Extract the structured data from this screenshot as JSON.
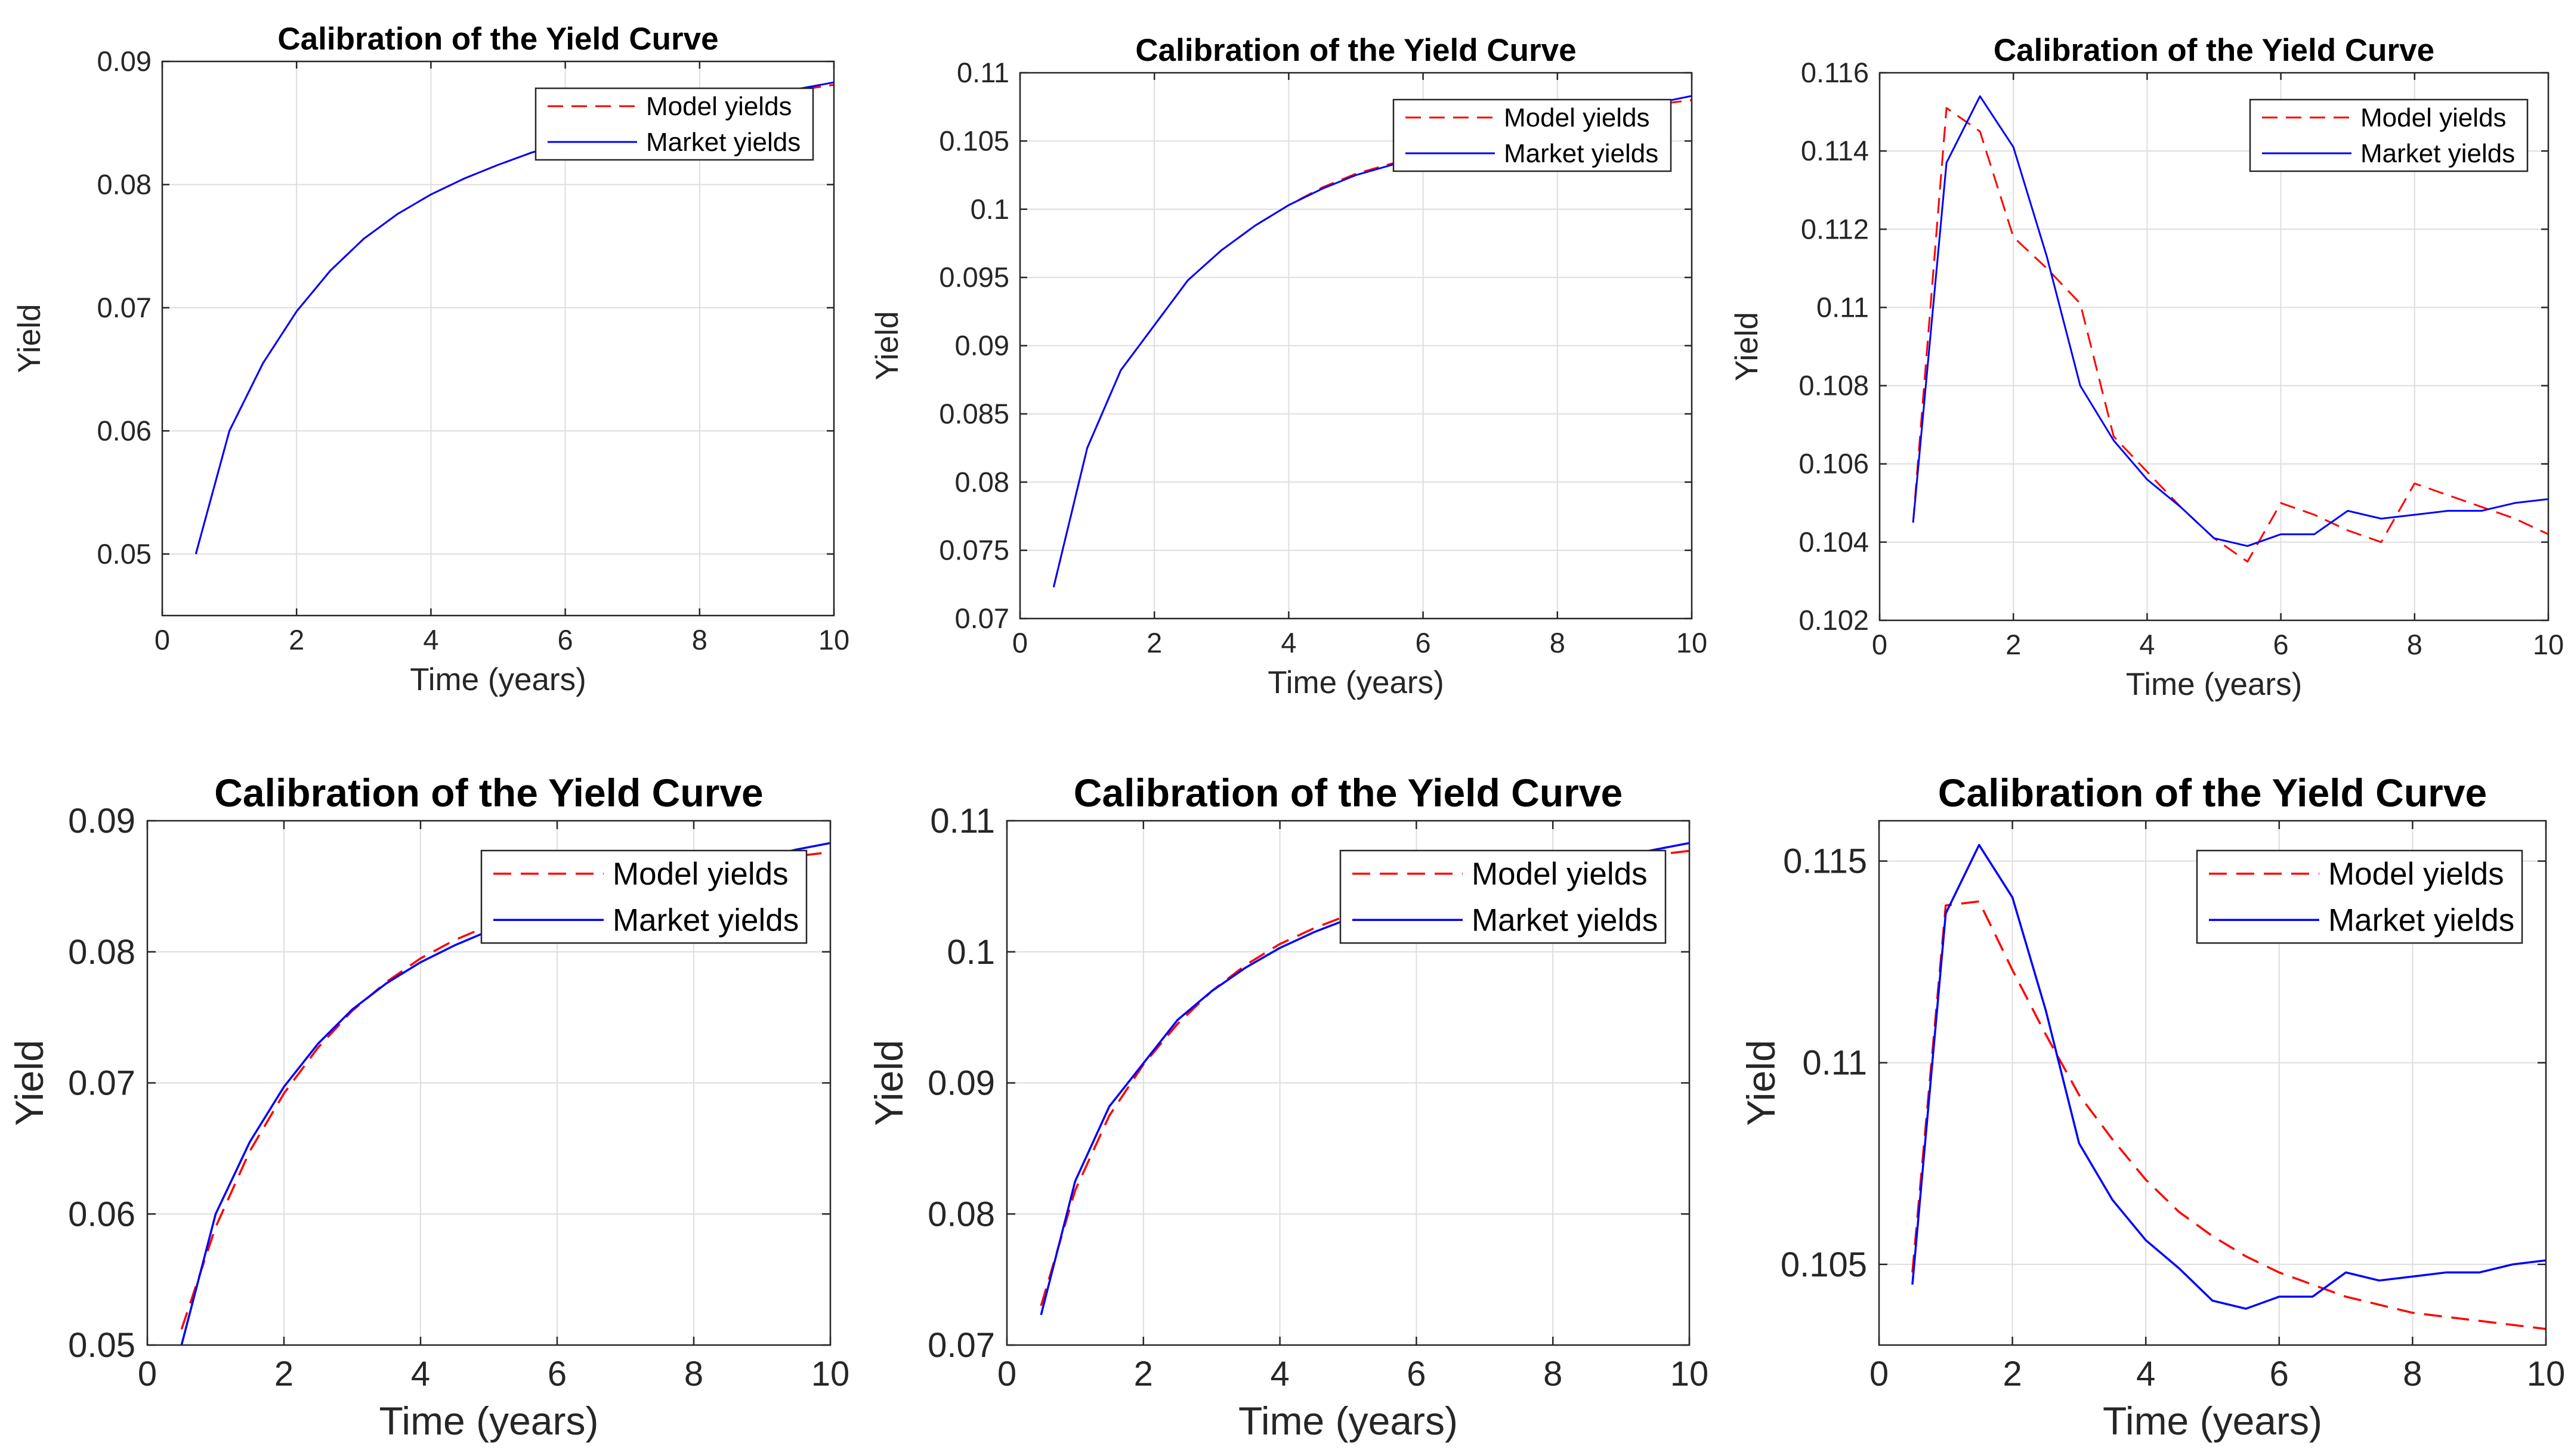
{
  "chart_data": [
    {
      "type": "line",
      "title": "Calibration of the Yield Curve",
      "xlabel": "Time (years)",
      "ylabel": "Yield",
      "xlim": [
        0,
        10
      ],
      "ylim": [
        0.045,
        0.09
      ],
      "xticks": [
        0,
        2,
        4,
        6,
        8,
        10
      ],
      "xtick_labels": [
        "0",
        "2",
        "4",
        "6",
        "8",
        "10"
      ],
      "yticks": [
        0.05,
        0.06,
        0.07,
        0.08,
        0.09
      ],
      "ytick_labels": [
        "0.05",
        "0.06",
        "0.07",
        "0.08",
        "0.09"
      ],
      "grid": true,
      "legend": "top-right",
      "x": [
        0.5,
        1,
        1.5,
        2,
        2.5,
        3,
        3.5,
        4,
        4.5,
        5,
        5.5,
        6,
        6.5,
        7,
        7.5,
        8,
        8.5,
        9,
        9.5,
        10
      ],
      "series": [
        {
          "name": "Model yields",
          "color": "#ff0000",
          "style": "dashed",
          "values": [
            0.05,
            0.06,
            0.0655,
            0.0697,
            0.073,
            0.0756,
            0.0776,
            0.0792,
            0.0805,
            0.0816,
            0.0826,
            0.0834,
            0.0841,
            0.0848,
            0.0854,
            0.086,
            0.0866,
            0.0872,
            0.0877,
            0.0881
          ]
        },
        {
          "name": "Market yields",
          "color": "#0000ff",
          "style": "solid",
          "values": [
            0.05,
            0.06,
            0.0655,
            0.0697,
            0.073,
            0.0756,
            0.0776,
            0.0792,
            0.0805,
            0.0816,
            0.0826,
            0.0834,
            0.0841,
            0.0848,
            0.0854,
            0.086,
            0.0866,
            0.0872,
            0.0878,
            0.0883
          ]
        }
      ]
    },
    {
      "type": "line",
      "title": "Calibration of the Yield Curve",
      "xlabel": "Time (years)",
      "ylabel": "Yield",
      "xlim": [
        0,
        10
      ],
      "ylim": [
        0.07,
        0.11
      ],
      "xticks": [
        0,
        2,
        4,
        6,
        8,
        10
      ],
      "xtick_labels": [
        "0",
        "2",
        "4",
        "6",
        "8",
        "10"
      ],
      "yticks": [
        0.07,
        0.075,
        0.08,
        0.085,
        0.09,
        0.095,
        0.1,
        0.105,
        0.11
      ],
      "ytick_labels": [
        "0.07",
        "0.075",
        "0.08",
        "0.085",
        "0.09",
        "0.095",
        "0.1",
        "0.105",
        "0.11"
      ],
      "grid": true,
      "legend": "top-right",
      "x": [
        0.5,
        1,
        1.5,
        2,
        2.5,
        3,
        3.5,
        4,
        4.5,
        5,
        5.5,
        6,
        6.5,
        7,
        7.5,
        8,
        8.5,
        9,
        9.5,
        10
      ],
      "series": [
        {
          "name": "Model yields",
          "color": "#ff0000",
          "style": "dashed",
          "values": [
            0.0723,
            0.0825,
            0.0882,
            0.0915,
            0.0948,
            0.097,
            0.0988,
            0.1003,
            0.1016,
            0.1026,
            0.1033,
            0.104,
            0.1047,
            0.1053,
            0.1058,
            0.1063,
            0.1068,
            0.1073,
            0.1077,
            0.108
          ]
        },
        {
          "name": "Market yields",
          "color": "#0000ff",
          "style": "solid",
          "values": [
            0.0723,
            0.0825,
            0.0882,
            0.0915,
            0.0948,
            0.097,
            0.0988,
            0.1003,
            0.1015,
            0.1025,
            0.1032,
            0.104,
            0.1047,
            0.1053,
            0.1058,
            0.1063,
            0.1068,
            0.1073,
            0.1078,
            0.1083
          ]
        }
      ]
    },
    {
      "type": "line",
      "title": "Calibration of the Yield Curve",
      "xlabel": "Time (years)",
      "ylabel": "Yield",
      "xlim": [
        0,
        10
      ],
      "ylim": [
        0.102,
        0.116
      ],
      "xticks": [
        0,
        2,
        4,
        6,
        8,
        10
      ],
      "xtick_labels": [
        "0",
        "2",
        "4",
        "6",
        "8",
        "10"
      ],
      "yticks": [
        0.102,
        0.104,
        0.106,
        0.108,
        0.11,
        0.112,
        0.114,
        0.116
      ],
      "ytick_labels": [
        "0.102",
        "0.104",
        "0.106",
        "0.108",
        "0.11",
        "0.112",
        "0.114",
        "0.116"
      ],
      "grid": true,
      "legend": "top-right",
      "x": [
        0.5,
        1,
        1.5,
        2,
        2.5,
        3,
        3.5,
        4,
        4.5,
        5,
        5.5,
        6,
        6.5,
        7,
        7.5,
        8,
        8.5,
        9,
        9.5,
        10
      ],
      "series": [
        {
          "name": "Model yields",
          "color": "#ff0000",
          "style": "dashed",
          "values": [
            0.1045,
            0.1151,
            0.1145,
            0.1118,
            0.111,
            0.1101,
            0.1067,
            0.1058,
            0.1049,
            0.1041,
            0.1035,
            0.105,
            0.1047,
            0.1043,
            0.104,
            0.1055,
            0.1052,
            0.1049,
            0.1046,
            0.1042
          ]
        },
        {
          "name": "Market yields",
          "color": "#0000ff",
          "style": "solid",
          "values": [
            0.1045,
            0.1137,
            0.1154,
            0.1141,
            0.1113,
            0.108,
            0.1066,
            0.1056,
            0.1049,
            0.1041,
            0.1039,
            0.1042,
            0.1042,
            0.1048,
            0.1046,
            0.1047,
            0.1048,
            0.1048,
            0.105,
            0.1051
          ]
        }
      ]
    },
    {
      "type": "line",
      "title": "Calibration of the Yield Curve",
      "xlabel": "Time (years)",
      "ylabel": "Yield",
      "xlim": [
        0,
        10
      ],
      "ylim": [
        0.05,
        0.09
      ],
      "xticks": [
        0,
        2,
        4,
        6,
        8,
        10
      ],
      "xtick_labels": [
        "0",
        "2",
        "4",
        "6",
        "8",
        "10"
      ],
      "yticks": [
        0.05,
        0.06,
        0.07,
        0.08,
        0.09
      ],
      "ytick_labels": [
        "0.05",
        "0.06",
        "0.07",
        "0.08",
        "0.09"
      ],
      "grid": true,
      "legend": "top-right",
      "x": [
        0.5,
        1,
        1.5,
        2,
        2.5,
        3,
        3.5,
        4,
        4.5,
        5,
        5.5,
        6,
        6.5,
        7,
        7.5,
        8,
        8.5,
        9,
        9.5,
        10
      ],
      "series": [
        {
          "name": "Model yields",
          "color": "#ff0000",
          "style": "dashed",
          "values": [
            0.0512,
            0.059,
            0.0648,
            0.0692,
            0.0727,
            0.0755,
            0.0777,
            0.0795,
            0.0809,
            0.082,
            0.0829,
            0.0836,
            0.0842,
            0.0848,
            0.0853,
            0.0858,
            0.0864,
            0.0869,
            0.0873,
            0.0876
          ]
        },
        {
          "name": "Market yields",
          "color": "#0000ff",
          "style": "solid",
          "values": [
            0.05,
            0.06,
            0.0655,
            0.0697,
            0.073,
            0.0756,
            0.0776,
            0.0792,
            0.0805,
            0.0816,
            0.0826,
            0.0834,
            0.0841,
            0.0848,
            0.0854,
            0.086,
            0.0866,
            0.0872,
            0.0878,
            0.0883
          ]
        }
      ]
    },
    {
      "type": "line",
      "title": "Calibration of the Yield Curve",
      "xlabel": "Time (years)",
      "ylabel": "Yield",
      "xlim": [
        0,
        10
      ],
      "ylim": [
        0.07,
        0.11
      ],
      "xticks": [
        0,
        2,
        4,
        6,
        8,
        10
      ],
      "xtick_labels": [
        "0",
        "2",
        "4",
        "6",
        "8",
        "10"
      ],
      "yticks": [
        0.07,
        0.08,
        0.09,
        0.1,
        0.11
      ],
      "ytick_labels": [
        "0.07",
        "0.08",
        "0.09",
        "0.1",
        "0.11"
      ],
      "grid": true,
      "legend": "top-right",
      "x": [
        0.5,
        1,
        1.5,
        2,
        2.5,
        3,
        3.5,
        4,
        4.5,
        5,
        5.5,
        6,
        6.5,
        7,
        7.5,
        8,
        8.5,
        9,
        9.5,
        10
      ],
      "series": [
        {
          "name": "Model yields",
          "color": "#ff0000",
          "style": "dashed",
          "values": [
            0.073,
            0.0818,
            0.0875,
            0.0914,
            0.0945,
            0.097,
            0.099,
            0.1006,
            0.1018,
            0.1028,
            0.1036,
            0.1043,
            0.1049,
            0.1054,
            0.1058,
            0.1062,
            0.1066,
            0.107,
            0.1074,
            0.1077
          ]
        },
        {
          "name": "Market yields",
          "color": "#0000ff",
          "style": "solid",
          "values": [
            0.0723,
            0.0825,
            0.0882,
            0.0915,
            0.0948,
            0.097,
            0.0988,
            0.1003,
            0.1015,
            0.1025,
            0.1032,
            0.104,
            0.1047,
            0.1053,
            0.1058,
            0.1063,
            0.1068,
            0.1073,
            0.1078,
            0.1083
          ]
        }
      ]
    },
    {
      "type": "line",
      "title": "Calibration of the Yield Curve",
      "xlabel": "Time (years)",
      "ylabel": "Yield",
      "xlim": [
        0,
        10
      ],
      "ylim": [
        0.103,
        0.116
      ],
      "xticks": [
        0,
        2,
        4,
        6,
        8,
        10
      ],
      "xtick_labels": [
        "0",
        "2",
        "4",
        "6",
        "8",
        "10"
      ],
      "yticks": [
        0.105,
        0.11,
        0.115
      ],
      "ytick_labels": [
        "0.105",
        "0.11",
        "0.115"
      ],
      "grid": true,
      "legend": "top-right",
      "x": [
        0.5,
        1,
        1.5,
        2,
        2.5,
        3,
        3.5,
        4,
        4.5,
        5,
        5.5,
        6,
        6.5,
        7,
        7.5,
        8,
        8.5,
        9,
        9.5,
        10
      ],
      "series": [
        {
          "name": "Model yields",
          "color": "#ff0000",
          "style": "dashed",
          "values": [
            0.1048,
            0.1139,
            0.114,
            0.1123,
            0.1107,
            0.1092,
            0.1081,
            0.1071,
            0.1063,
            0.1057,
            0.1052,
            0.1048,
            0.1045,
            0.1042,
            0.104,
            0.1038,
            0.1037,
            0.1036,
            0.1035,
            0.1034
          ]
        },
        {
          "name": "Market yields",
          "color": "#0000ff",
          "style": "solid",
          "values": [
            0.1045,
            0.1137,
            0.1154,
            0.1141,
            0.1113,
            0.108,
            0.1066,
            0.1056,
            0.1049,
            0.1041,
            0.1039,
            0.1042,
            0.1042,
            0.1048,
            0.1046,
            0.1047,
            0.1048,
            0.1048,
            0.105,
            0.1051
          ]
        }
      ]
    }
  ]
}
